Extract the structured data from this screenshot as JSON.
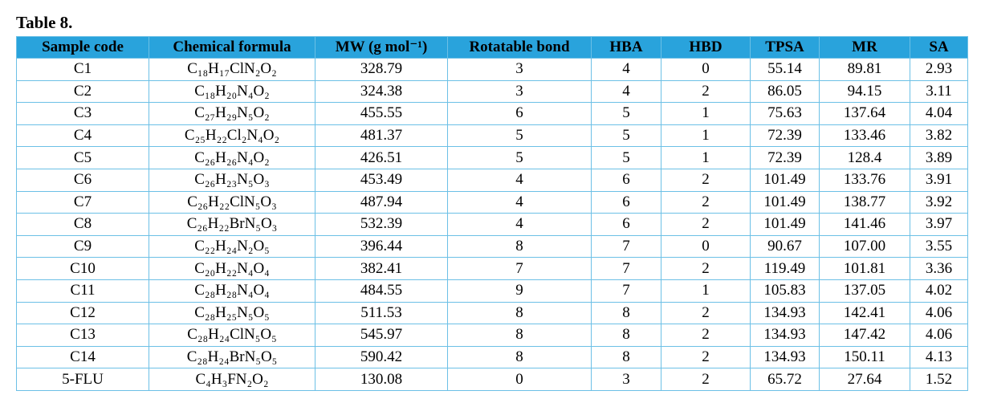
{
  "title": "Table 8.",
  "table": {
    "header": [
      "Sample code",
      "Chemical formula",
      "MW (g mol⁻¹)",
      "Rotatable bond",
      "HBA",
      "HBD",
      "TPSA",
      "MR",
      "SA"
    ],
    "rows": [
      [
        "C1",
        "C₁₈H₁₇ClN₂O₂",
        "328.79",
        "3",
        "4",
        "0",
        "55.14",
        "89.81",
        "2.93"
      ],
      [
        "C2",
        "C₁₈H₂₀N₄O₂",
        "324.38",
        "3",
        "4",
        "2",
        "86.05",
        "94.15",
        "3.11"
      ],
      [
        "C3",
        "C₂₇H₂₉N₅O₂",
        "455.55",
        "6",
        "5",
        "1",
        "75.63",
        "137.64",
        "4.04"
      ],
      [
        "C4",
        "C₂₅H₂₂Cl₂N₄O₂",
        "481.37",
        "5",
        "5",
        "1",
        "72.39",
        "133.46",
        "3.82"
      ],
      [
        "C5",
        "C₂₆H₂₆N₄O₂",
        "426.51",
        "5",
        "5",
        "1",
        "72.39",
        "128.4",
        "3.89"
      ],
      [
        "C6",
        "C₂₆H₂₃N₅O₃",
        "453.49",
        "4",
        "6",
        "2",
        "101.49",
        "133.76",
        "3.91"
      ],
      [
        "C7",
        "C₂₆H₂₂ClN₅O₃",
        "487.94",
        "4",
        "6",
        "2",
        "101.49",
        "138.77",
        "3.92"
      ],
      [
        "C8",
        "C₂₆H₂₂BrN₅O₃",
        "532.39",
        "4",
        "6",
        "2",
        "101.49",
        "141.46",
        "3.97"
      ],
      [
        "C9",
        "C₂₂H₂₄N₂O₅",
        "396.44",
        "8",
        "7",
        "0",
        "90.67",
        "107.00",
        "3.55"
      ],
      [
        "C10",
        "C₂₀H₂₂N₄O₄",
        "382.41",
        "7",
        "7",
        "2",
        "119.49",
        "101.81",
        "3.36"
      ],
      [
        "C11",
        "C₂₈H₂₈N₄O₄",
        "484.55",
        "9",
        "7",
        "1",
        "105.83",
        "137.05",
        "4.02"
      ],
      [
        "C12",
        "C₂₈H₂₅N₅O₅",
        "511.53",
        "8",
        "8",
        "2",
        "134.93",
        "142.41",
        "4.06"
      ],
      [
        "C13",
        "C₂₈H₂₄ClN₅O₅",
        "545.97",
        "8",
        "8",
        "2",
        "134.93",
        "147.42",
        "4.06"
      ],
      [
        "C14",
        "C₂₈H₂₄BrN₅O₅",
        "590.42",
        "8",
        "8",
        "2",
        "134.93",
        "150.11",
        "4.13"
      ],
      [
        "5-FLU",
        "C₄H₃FN₂O₂",
        "130.08",
        "0",
        "3",
        "2",
        "65.72",
        "27.64",
        "1.52"
      ]
    ]
  }
}
